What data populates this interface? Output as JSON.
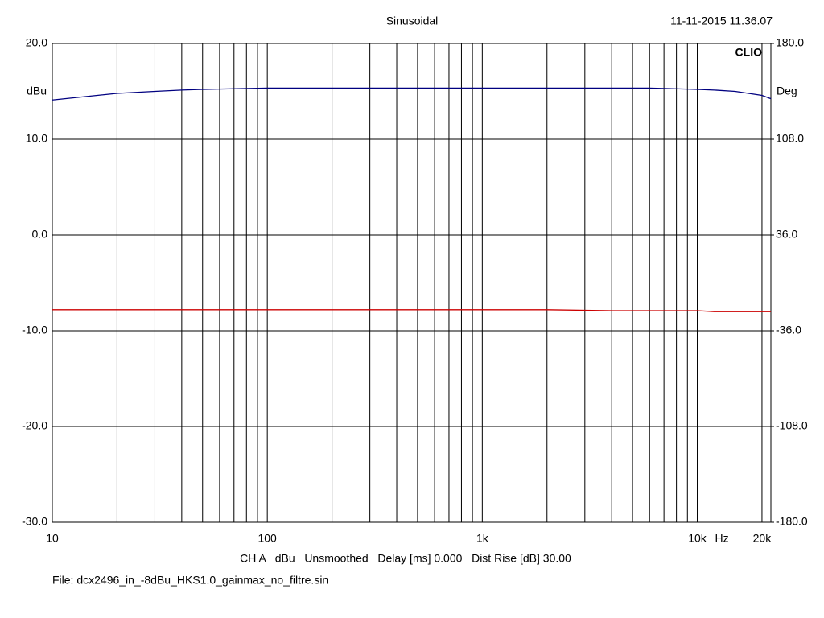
{
  "chart_data": {
    "type": "line",
    "title": "Sinusoidal",
    "timestamp": "11-11-2015 11.36.07",
    "brand": "CLIO",
    "y_label": "dBu",
    "y2_label": "Deg",
    "x_unit": "Hz",
    "settings_line": "CH A   dBu   Unsmoothed   Delay [ms] 0.000   Dist Rise [dB] 30.00",
    "file_line": "File: dcx2496_in_-8dBu_HKS1.0_gainmax_no_filtre.sin",
    "log_x": true,
    "grid": true,
    "xlim": [
      10,
      22000
    ],
    "xticks": [
      10,
      100,
      {
        "value": 1000,
        "label": "1k"
      },
      {
        "value": 10000,
        "label": "10k"
      },
      {
        "value": 20000,
        "label": "20k"
      }
    ],
    "xgrid": [
      20,
      30,
      40,
      50,
      60,
      70,
      80,
      90,
      200,
      300,
      400,
      500,
      600,
      700,
      800,
      900,
      2000,
      3000,
      4000,
      5000,
      6000,
      7000,
      8000,
      9000
    ],
    "ylim": [
      -30,
      20
    ],
    "yticks": [
      {
        "value": 20,
        "label": "20.0"
      },
      {
        "value": 10,
        "label": "10.0"
      },
      {
        "value": 0,
        "label": "0.0"
      },
      {
        "value": -10,
        "label": "-10.0"
      },
      {
        "value": -20,
        "label": "-20.0"
      },
      {
        "value": -30,
        "label": "-30.0"
      }
    ],
    "y2lim": [
      -180,
      180
    ],
    "y2ticks": [
      {
        "value": 180,
        "label": "180.0"
      },
      {
        "value": 108,
        "label": "108.0"
      },
      {
        "value": 36,
        "label": "36.0"
      },
      {
        "value": -36,
        "label": "-36.0"
      },
      {
        "value": -108,
        "label": "-108.0"
      },
      {
        "value": -180,
        "label": "-180.0"
      }
    ],
    "x": [
      10,
      20,
      30,
      40,
      50,
      100,
      200,
      500,
      1000,
      2000,
      4000,
      6000,
      10000,
      12000,
      15000,
      20000,
      22000
    ],
    "series": [
      {
        "color": "#cc0000",
        "values": [
          -7.8,
          -7.8,
          -7.8,
          -7.8,
          -7.8,
          -7.8,
          -7.8,
          -7.8,
          -7.8,
          -7.8,
          -7.9,
          -7.9,
          -7.9,
          -8.0,
          -8.0,
          -8.0,
          -8.0
        ]
      },
      {
        "color": "#000080",
        "axis": "y2",
        "values": [
          137.5,
          142.5,
          144,
          145,
          145.5,
          146.5,
          146.5,
          146.5,
          146.5,
          146.5,
          146.5,
          146.5,
          145.5,
          145,
          144,
          141,
          138.5
        ]
      }
    ]
  }
}
